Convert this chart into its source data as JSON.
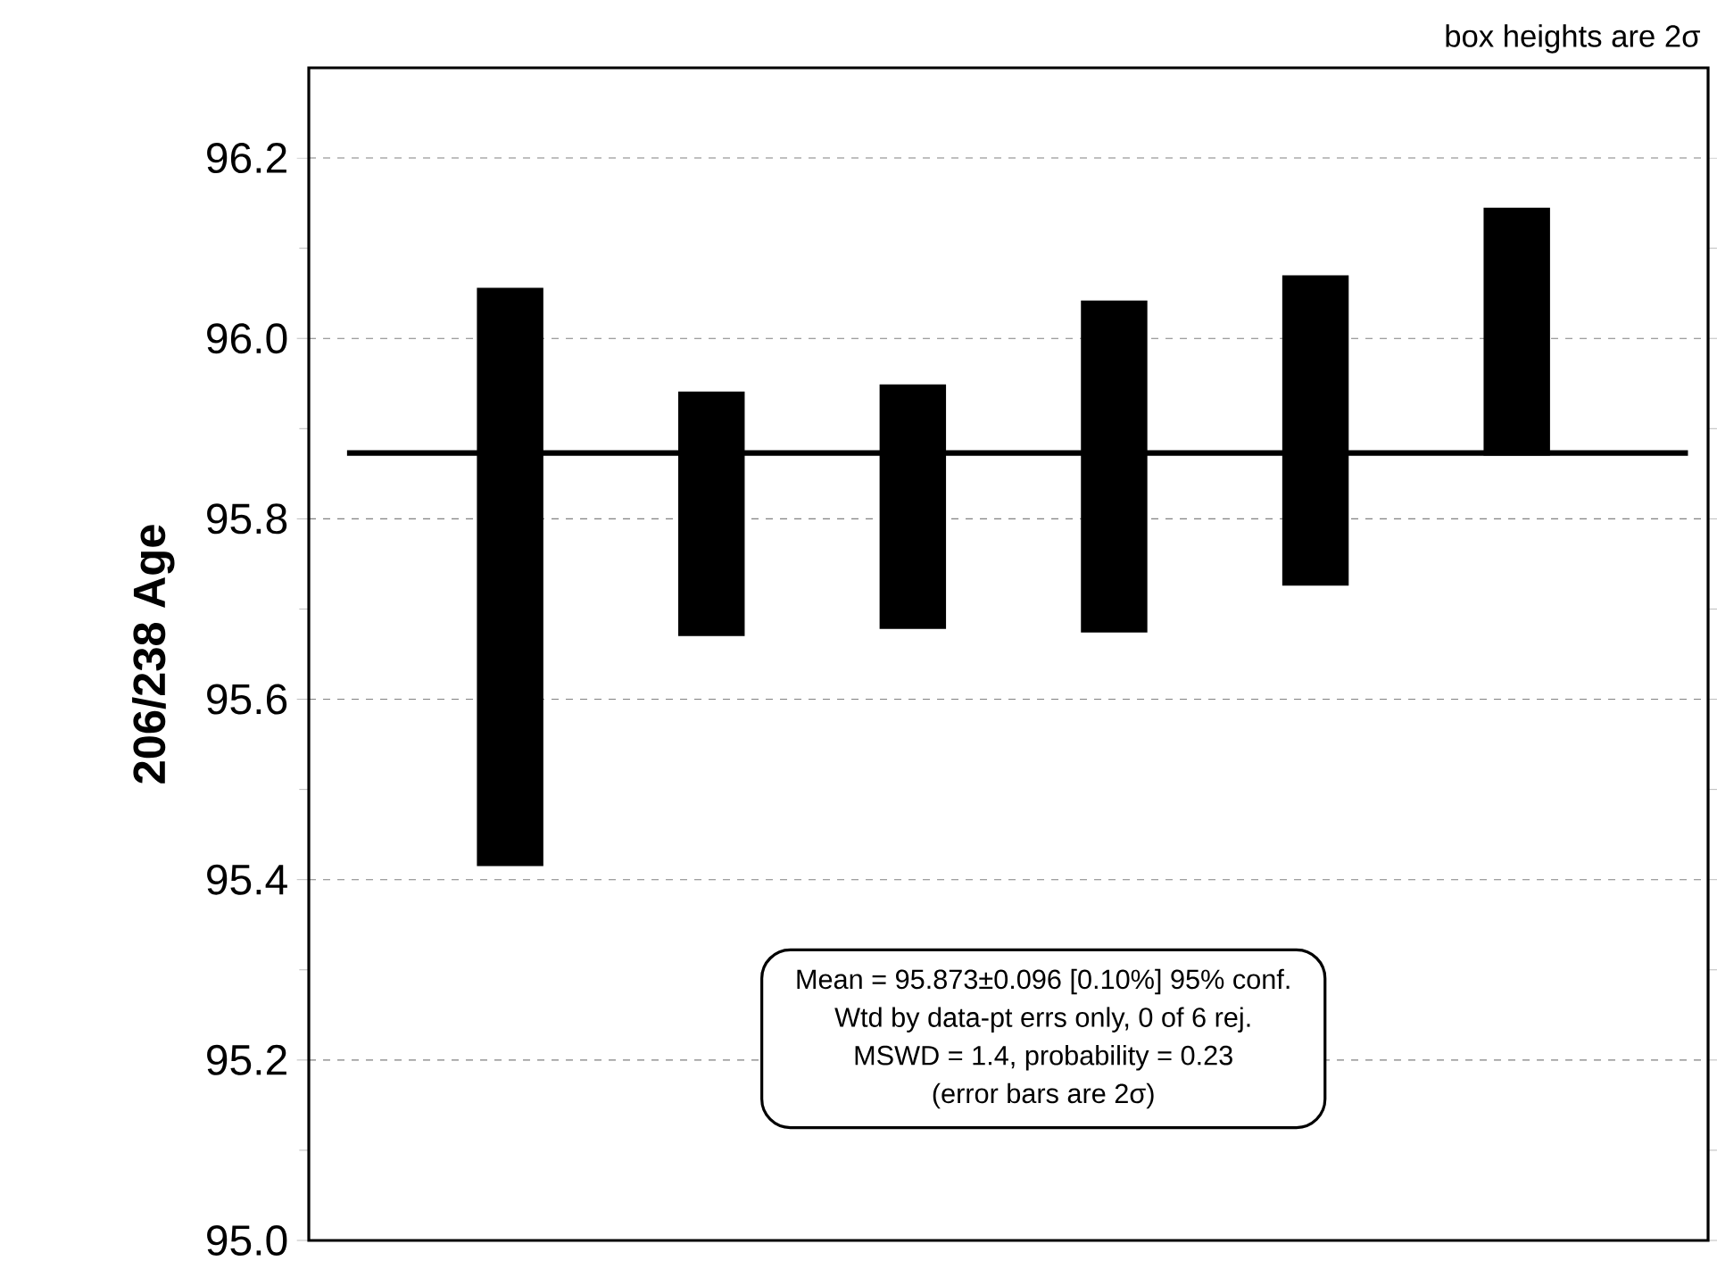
{
  "chart_data": {
    "type": "bar",
    "ylabel": "206/238 Age",
    "categories": [
      null,
      null,
      null,
      null,
      null,
      null
    ],
    "base": [
      95.415,
      95.67,
      95.678,
      95.674,
      95.726,
      95.87
    ],
    "values": [
      0.641,
      0.271,
      0.271,
      0.368,
      0.344,
      0.275
    ],
    "color": "#000000",
    "ylim": [
      95.0,
      96.3
    ],
    "yticks": [
      {
        "value": 95.0,
        "label": "95.0"
      },
      95.2,
      95.4,
      95.6,
      95.8,
      {
        "value": 96.0,
        "label": "96.0"
      },
      96.2
    ],
    "grid": "y",
    "ref_lines": [
      {
        "axis": "y",
        "value": 95.873,
        "color": "#000000"
      }
    ],
    "annotations": [
      "box heights are 2σ",
      "Mean = 95.873±0.096  [0.10%]  95% conf.",
      "Wtd by data-pt errs only, 0 of 6 rej.",
      "MSWD = 1.4, probability = 0.23",
      "(error bars are 2σ)"
    ]
  }
}
